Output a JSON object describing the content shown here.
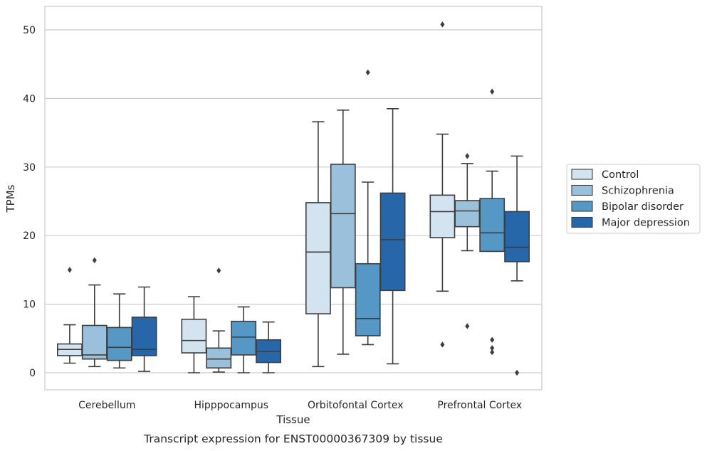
{
  "chart_data": {
    "type": "box",
    "caption": "Transcript expression for ENST00000367309 by tissue",
    "xlabel": "Tissue",
    "ylabel": "TPMs",
    "ylim": [
      -2.3,
      53.5
    ],
    "yticks": [
      0,
      10,
      20,
      30,
      40,
      50
    ],
    "grid": "horizontal",
    "legend_position": "right",
    "categories": [
      "Cerebellum",
      "Hipppocampus",
      "Orbitofontal Cortex",
      "Prefrontal Cortex"
    ],
    "series": [
      {
        "name": "Control",
        "color": "#d4e3f0",
        "boxes": [
          {
            "whislo": 1.4,
            "q1": 2.5,
            "med": 3.4,
            "q3": 4.2,
            "whishi": 7.0,
            "fliers": [
              15.0
            ]
          },
          {
            "whislo": 0.0,
            "q1": 2.9,
            "med": 4.7,
            "q3": 7.8,
            "whishi": 11.1,
            "fliers": []
          },
          {
            "whislo": 0.9,
            "q1": 8.6,
            "med": 17.6,
            "q3": 24.8,
            "whishi": 36.6,
            "fliers": []
          },
          {
            "whislo": 11.9,
            "q1": 19.7,
            "med": 23.5,
            "q3": 25.9,
            "whishi": 34.8,
            "fliers": [
              50.8,
              4.1
            ]
          }
        ]
      },
      {
        "name": "Schizophrenia",
        "color": "#9ac0dc",
        "boxes": [
          {
            "whislo": 0.9,
            "q1": 2.0,
            "med": 2.6,
            "q3": 6.9,
            "whishi": 12.8,
            "fliers": [
              16.4
            ]
          },
          {
            "whislo": 0.1,
            "q1": 0.7,
            "med": 2.0,
            "q3": 3.6,
            "whishi": 6.1,
            "fliers": [
              14.9
            ]
          },
          {
            "whislo": 2.7,
            "q1": 12.4,
            "med": 23.2,
            "q3": 30.4,
            "whishi": 38.3,
            "fliers": []
          },
          {
            "whislo": 17.8,
            "q1": 21.3,
            "med": 23.6,
            "q3": 25.1,
            "whishi": 30.5,
            "fliers": [
              31.6,
              6.8
            ]
          }
        ]
      },
      {
        "name": "Bipolar disorder",
        "color": "#5598c6",
        "boxes": [
          {
            "whislo": 0.7,
            "q1": 1.8,
            "med": 3.7,
            "q3": 6.6,
            "whishi": 11.5,
            "fliers": []
          },
          {
            "whislo": 0.0,
            "q1": 2.6,
            "med": 5.2,
            "q3": 7.5,
            "whishi": 9.6,
            "fliers": []
          },
          {
            "whislo": 4.1,
            "q1": 5.4,
            "med": 7.9,
            "q3": 15.9,
            "whishi": 27.8,
            "fliers": [
              43.8
            ]
          },
          {
            "whislo": 17.7,
            "q1": 17.7,
            "med": 20.4,
            "q3": 25.4,
            "whishi": 29.4,
            "fliers": [
              41.0,
              4.8,
              3.6,
              3.0
            ]
          }
        ]
      },
      {
        "name": "Major depression",
        "color": "#2767a9",
        "boxes": [
          {
            "whislo": 0.2,
            "q1": 2.5,
            "med": 3.4,
            "q3": 8.1,
            "whishi": 12.5,
            "fliers": []
          },
          {
            "whislo": 0.0,
            "q1": 1.5,
            "med": 3.1,
            "q3": 4.8,
            "whishi": 7.4,
            "fliers": []
          },
          {
            "whislo": 1.3,
            "q1": 12.0,
            "med": 19.4,
            "q3": 26.2,
            "whishi": 38.5,
            "fliers": []
          },
          {
            "whislo": 13.4,
            "q1": 16.2,
            "med": 18.3,
            "q3": 23.5,
            "whishi": 31.6,
            "fliers": [
              0.0
            ]
          }
        ]
      }
    ]
  }
}
